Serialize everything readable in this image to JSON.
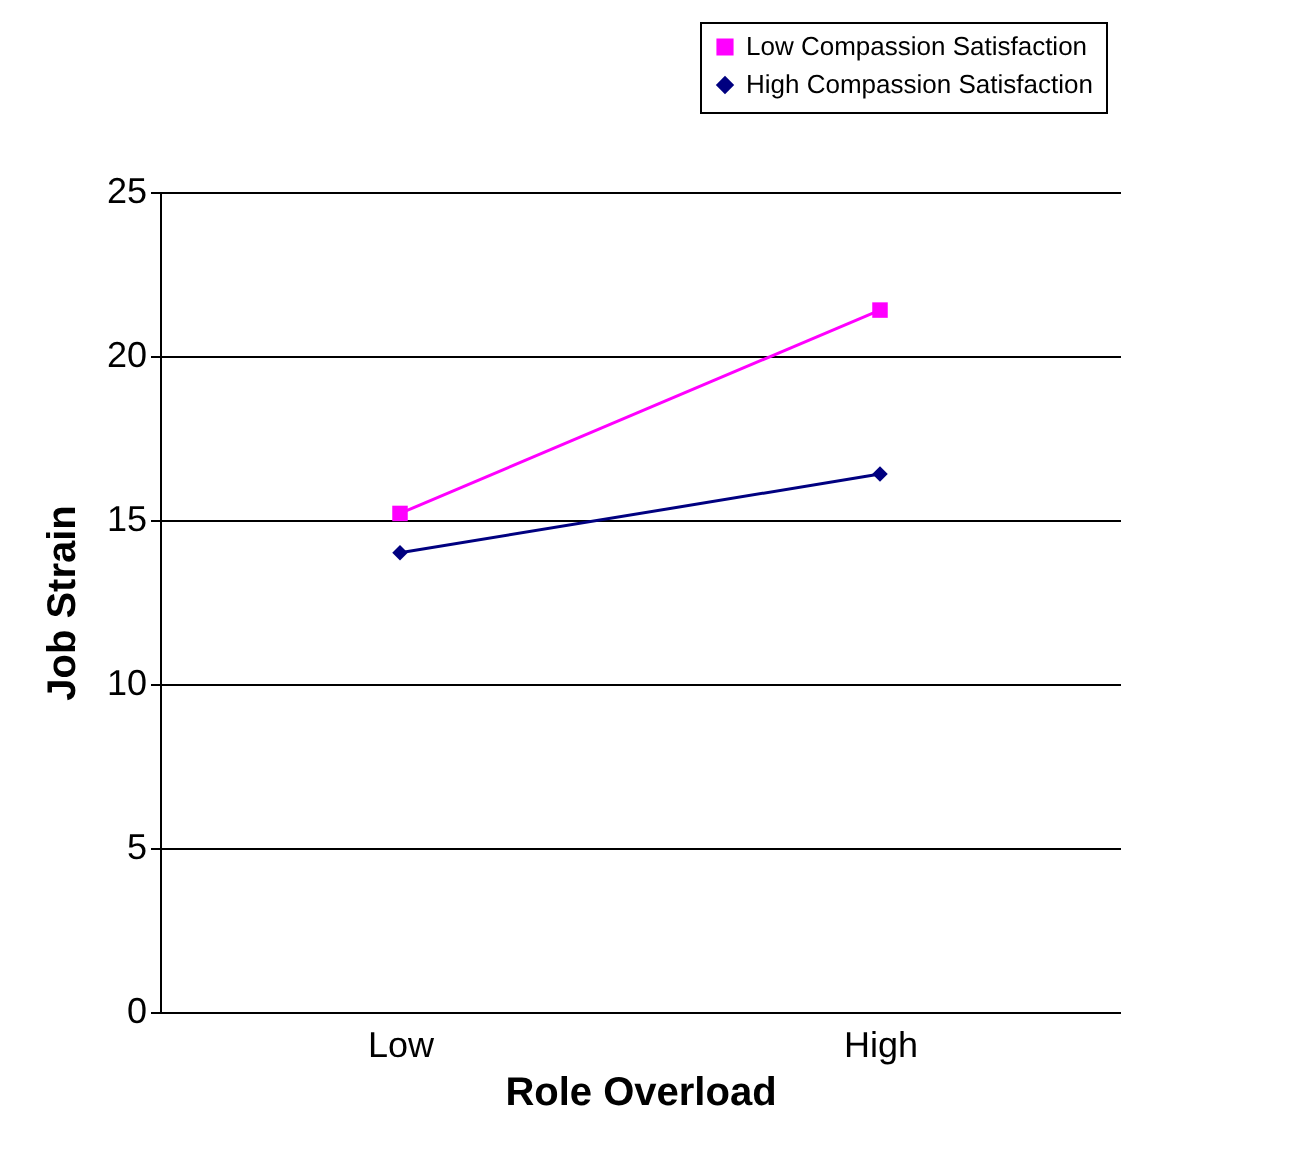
{
  "chart_data": {
    "type": "line",
    "xlabel": "Role Overload",
    "ylabel": "Job Strain",
    "categories": [
      "Low",
      "High"
    ],
    "series": [
      {
        "name": "Low Compassion Satisfaction",
        "color": "#ff00ff",
        "marker": "square",
        "values": [
          15.2,
          21.4
        ]
      },
      {
        "name": "High Compassion Satisfaction",
        "color": "#000080",
        "marker": "diamond",
        "values": [
          14.0,
          16.4
        ]
      }
    ],
    "ylim": [
      0,
      25
    ],
    "yticks": [
      0,
      5,
      10,
      15,
      20,
      25
    ],
    "grid": "y",
    "legend": "top right",
    "line_style": "solid"
  }
}
